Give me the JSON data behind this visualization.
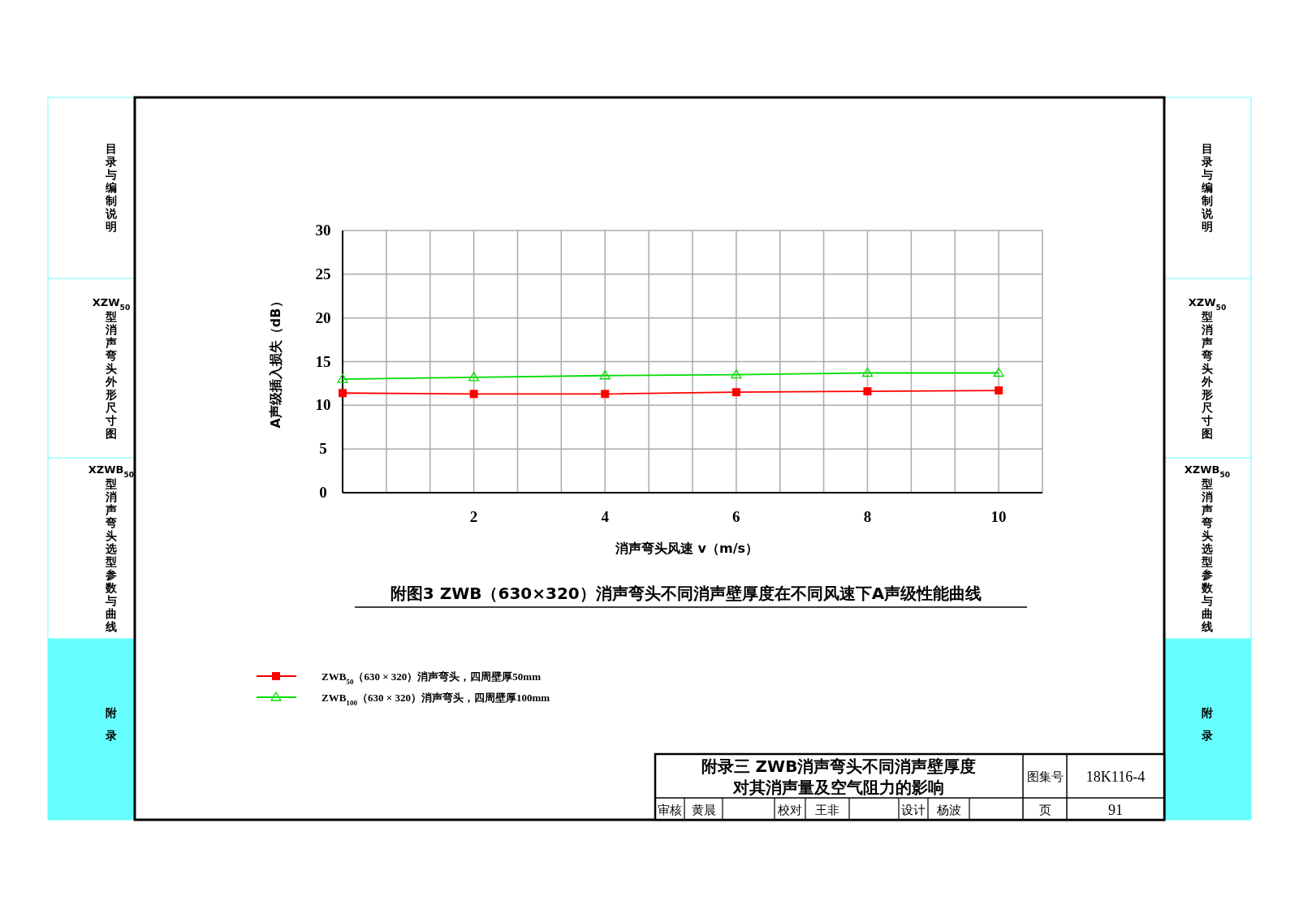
{
  "chart_data": {
    "type": "line",
    "title": "附图3 ZWB（630×320）消声弯头不同消声壁厚度在不同风速下A声级性能曲线",
    "xlabel": "消声弯头风速 v（m/s）",
    "ylabel": "A声级插入损失（dB）",
    "x": [
      0,
      2,
      4,
      6,
      8,
      10
    ],
    "series": [
      {
        "name": "ZWB$_{50}$（630 × 320）消声弯头，四周壁厚50mm",
        "color": "#ff0000",
        "marker": "square",
        "values": [
          11.4,
          11.3,
          11.3,
          11.5,
          11.6,
          11.7
        ]
      },
      {
        "name": "ZWB$_{100}$（630 × 320）消声弯头，四周壁厚100mm",
        "color": "#00dd00",
        "marker": "triangle",
        "values": [
          13.0,
          13.2,
          13.4,
          13.5,
          13.7,
          13.7
        ]
      }
    ],
    "xlim": [
      0,
      10.667
    ],
    "xticks": [
      {
        "value": 0,
        "label": null
      },
      {
        "value": 0.667,
        "label": null
      },
      {
        "value": 1.333,
        "label": null
      },
      2,
      {
        "value": 2.667,
        "label": null
      },
      {
        "value": 3.333,
        "label": null
      },
      4,
      {
        "value": 4.667,
        "label": null
      },
      {
        "value": 5.333,
        "label": null
      },
      6,
      {
        "value": 6.667,
        "label": null
      },
      {
        "value": 7.333,
        "label": null
      },
      8,
      {
        "value": 8.667,
        "label": null
      },
      {
        "value": 9.333,
        "label": null
      },
      10,
      {
        "value": 10.667,
        "label": null
      }
    ],
    "ylim": [
      0,
      30
    ],
    "yticks": [
      0,
      5,
      10,
      15,
      20,
      25,
      30
    ],
    "grid": true,
    "legend": "bottom left",
    "annotations": [
      "目录与编制说明",
      "XZW$_{50}$型消声弯头外形尺寸图",
      "XZWB$_{50}$型消声弯头选型参数与曲线",
      "附录",
      "目录与编制说明",
      "XZW$_{50}$型消声弯头外形尺寸图",
      "XZWB$_{50}$型消声弯头选型参数与曲线",
      "附录",
      "附录三  ZWB消声弯头不同消声壁厚度",
      "对其消声量及空气阻力的影响",
      "图集号",
      "18K116-4",
      "审核",
      "黄晨",
      "校对",
      "王非",
      "设计",
      "杨波",
      "页",
      "91"
    ]
  }
}
